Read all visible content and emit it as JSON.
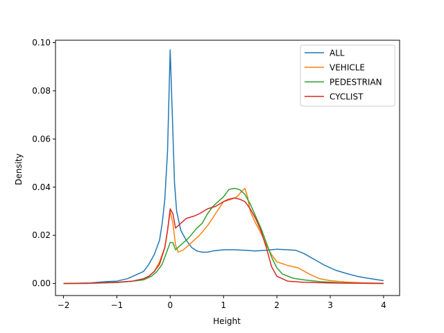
{
  "chart_data": {
    "type": "line",
    "title": "",
    "xlabel": "Height",
    "ylabel": "Density",
    "xlim": [
      -2.15,
      4.3
    ],
    "ylim": [
      -0.005,
      0.101
    ],
    "xticks": [
      -2,
      -1,
      0,
      1,
      2,
      3,
      4
    ],
    "xtick_labels": [
      "−2",
      "−1",
      "0",
      "1",
      "2",
      "3",
      "4"
    ],
    "yticks": [
      0.0,
      0.02,
      0.04,
      0.06,
      0.08,
      0.1
    ],
    "ytick_labels": [
      "0.00",
      "0.02",
      "0.04",
      "0.06",
      "0.08",
      "0.10"
    ],
    "grid": false,
    "legend_position": "top-right",
    "series": [
      {
        "name": "ALL",
        "color": "#1f77b4",
        "points": [
          [
            -2,
            0
          ],
          [
            -1.5,
            0.0002
          ],
          [
            -1.2,
            0.0008
          ],
          [
            -1,
            0.001
          ],
          [
            -0.8,
            0.002
          ],
          [
            -0.6,
            0.004
          ],
          [
            -0.5,
            0.005
          ],
          [
            -0.4,
            0.008
          ],
          [
            -0.3,
            0.012
          ],
          [
            -0.2,
            0.018
          ],
          [
            -0.15,
            0.025
          ],
          [
            -0.1,
            0.035
          ],
          [
            -0.05,
            0.055
          ],
          [
            0,
            0.097
          ],
          [
            0.04,
            0.07
          ],
          [
            0.08,
            0.042
          ],
          [
            0.12,
            0.03
          ],
          [
            0.2,
            0.022
          ],
          [
            0.3,
            0.018
          ],
          [
            0.4,
            0.015
          ],
          [
            0.5,
            0.0135
          ],
          [
            0.6,
            0.013
          ],
          [
            0.7,
            0.013
          ],
          [
            0.8,
            0.0135
          ],
          [
            1,
            0.014
          ],
          [
            1.2,
            0.014
          ],
          [
            1.4,
            0.0138
          ],
          [
            1.6,
            0.0135
          ],
          [
            1.8,
            0.0138
          ],
          [
            2,
            0.0142
          ],
          [
            2.2,
            0.014
          ],
          [
            2.35,
            0.0138
          ],
          [
            2.5,
            0.0125
          ],
          [
            2.7,
            0.01
          ],
          [
            2.9,
            0.0075
          ],
          [
            3.1,
            0.0055
          ],
          [
            3.3,
            0.0042
          ],
          [
            3.5,
            0.003
          ],
          [
            3.7,
            0.0022
          ],
          [
            3.9,
            0.0015
          ],
          [
            4,
            0.0012
          ]
        ]
      },
      {
        "name": "VEHICLE",
        "color": "#ff7f0e",
        "points": [
          [
            -2,
            0
          ],
          [
            -1.5,
            0.0001
          ],
          [
            -1,
            0.0005
          ],
          [
            -0.7,
            0.001
          ],
          [
            -0.5,
            0.002
          ],
          [
            -0.4,
            0.003
          ],
          [
            -0.3,
            0.005
          ],
          [
            -0.2,
            0.009
          ],
          [
            -0.1,
            0.015
          ],
          [
            -0.05,
            0.022
          ],
          [
            0,
            0.03
          ],
          [
            0.05,
            0.025
          ],
          [
            0.1,
            0.016
          ],
          [
            0.15,
            0.013
          ],
          [
            0.25,
            0.014
          ],
          [
            0.4,
            0.017
          ],
          [
            0.55,
            0.02
          ],
          [
            0.7,
            0.024
          ],
          [
            0.85,
            0.029
          ],
          [
            1,
            0.034
          ],
          [
            1.15,
            0.035
          ],
          [
            1.25,
            0.036
          ],
          [
            1.33,
            0.038
          ],
          [
            1.4,
            0.0395
          ],
          [
            1.45,
            0.036
          ],
          [
            1.5,
            0.03
          ],
          [
            1.6,
            0.025
          ],
          [
            1.7,
            0.021
          ],
          [
            1.8,
            0.016
          ],
          [
            1.9,
            0.012
          ],
          [
            2,
            0.009
          ],
          [
            2.2,
            0.0075
          ],
          [
            2.4,
            0.0065
          ],
          [
            2.6,
            0.004
          ],
          [
            2.8,
            0.002
          ],
          [
            3,
            0.0012
          ],
          [
            3.3,
            0.0006
          ],
          [
            3.6,
            0.0003
          ],
          [
            4,
            0.0001
          ]
        ]
      },
      {
        "name": "PEDESTRIAN",
        "color": "#2ca02c",
        "points": [
          [
            -2,
            0
          ],
          [
            -1.5,
            0.0001
          ],
          [
            -1,
            0.0004
          ],
          [
            -0.7,
            0.001
          ],
          [
            -0.5,
            0.0015
          ],
          [
            -0.35,
            0.003
          ],
          [
            -0.25,
            0.005
          ],
          [
            -0.15,
            0.008
          ],
          [
            -0.1,
            0.011
          ],
          [
            -0.05,
            0.014
          ],
          [
            0,
            0.017
          ],
          [
            0.05,
            0.017
          ],
          [
            0.1,
            0.014
          ],
          [
            0.2,
            0.016
          ],
          [
            0.35,
            0.019
          ],
          [
            0.5,
            0.023
          ],
          [
            0.6,
            0.025
          ],
          [
            0.7,
            0.029
          ],
          [
            0.8,
            0.032
          ],
          [
            0.9,
            0.034
          ],
          [
            1,
            0.036
          ],
          [
            1.1,
            0.039
          ],
          [
            1.2,
            0.0395
          ],
          [
            1.3,
            0.039
          ],
          [
            1.4,
            0.037
          ],
          [
            1.5,
            0.033
          ],
          [
            1.6,
            0.028
          ],
          [
            1.7,
            0.023
          ],
          [
            1.8,
            0.017
          ],
          [
            1.9,
            0.011
          ],
          [
            2,
            0.0065
          ],
          [
            2.1,
            0.004
          ],
          [
            2.3,
            0.0022
          ],
          [
            2.5,
            0.0015
          ],
          [
            2.8,
            0.0008
          ],
          [
            3.2,
            0.0003
          ],
          [
            3.6,
            0.0001
          ],
          [
            4,
            0.0
          ]
        ]
      },
      {
        "name": "CYCLIST",
        "color": "#d62728",
        "points": [
          [
            -2,
            0
          ],
          [
            -1.5,
            0.0001
          ],
          [
            -1,
            0.0005
          ],
          [
            -0.7,
            0.001
          ],
          [
            -0.5,
            0.002
          ],
          [
            -0.4,
            0.003
          ],
          [
            -0.3,
            0.005
          ],
          [
            -0.2,
            0.008
          ],
          [
            -0.1,
            0.015
          ],
          [
            -0.05,
            0.022
          ],
          [
            0,
            0.031
          ],
          [
            0.05,
            0.029
          ],
          [
            0.1,
            0.023
          ],
          [
            0.2,
            0.025
          ],
          [
            0.3,
            0.027
          ],
          [
            0.45,
            0.028
          ],
          [
            0.55,
            0.029
          ],
          [
            0.7,
            0.031
          ],
          [
            0.85,
            0.032
          ],
          [
            1,
            0.034
          ],
          [
            1.1,
            0.035
          ],
          [
            1.2,
            0.0355
          ],
          [
            1.3,
            0.035
          ],
          [
            1.4,
            0.034
          ],
          [
            1.5,
            0.031
          ],
          [
            1.6,
            0.027
          ],
          [
            1.7,
            0.022
          ],
          [
            1.8,
            0.015
          ],
          [
            1.9,
            0.007
          ],
          [
            2,
            0.003
          ],
          [
            2.2,
            0.001
          ],
          [
            2.5,
            0.0005
          ],
          [
            3,
            0.0002
          ],
          [
            3.5,
            0.0001
          ],
          [
            4,
            0.0
          ]
        ]
      }
    ]
  }
}
